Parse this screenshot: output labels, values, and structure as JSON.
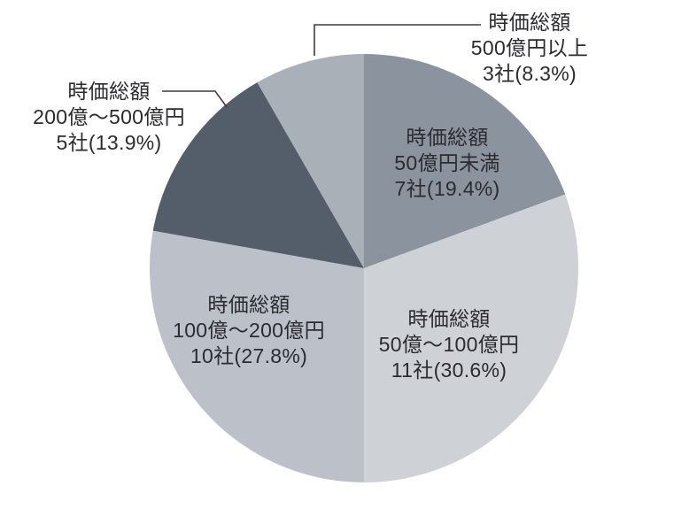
{
  "chart_data": {
    "type": "pie",
    "title": "",
    "unit": "社",
    "direction": "clockwise",
    "start_angle_deg": 0,
    "grid": false,
    "legend_position": "labels-on-chart",
    "text_color": "#2b2b30",
    "callout_line_color": "#3c3c40",
    "slices": [
      {
        "key": "under-50oku",
        "label_lines": [
          "時価総額",
          "50億円未満",
          "7社(19.4%)"
        ],
        "count": 7,
        "percent": 19.4,
        "color": "#8b939e",
        "label_placement": "inside"
      },
      {
        "key": "50-100oku",
        "label_lines": [
          "時価総額",
          "50億〜100億円",
          "11社(30.6%)"
        ],
        "count": 11,
        "percent": 30.6,
        "color": "#ced2d6",
        "label_placement": "inside"
      },
      {
        "key": "100-200oku",
        "label_lines": [
          "時価総額",
          "100億〜200億円",
          "10社(27.8%)"
        ],
        "count": 10,
        "percent": 27.8,
        "color": "#bcc0c9",
        "label_placement": "inside"
      },
      {
        "key": "200-500oku",
        "label_lines": [
          "時価総額",
          "200億〜500億円",
          "5社(13.9%)"
        ],
        "count": 5,
        "percent": 13.9,
        "color": "#545d6a",
        "label_placement": "outside-left",
        "callout": true
      },
      {
        "key": "over-500oku",
        "label_lines": [
          "時価総額",
          "500億円以上",
          "3社(8.3%)"
        ],
        "count": 3,
        "percent": 8.3,
        "color": "#aab0b8",
        "label_placement": "outside-right",
        "callout": true
      }
    ]
  }
}
